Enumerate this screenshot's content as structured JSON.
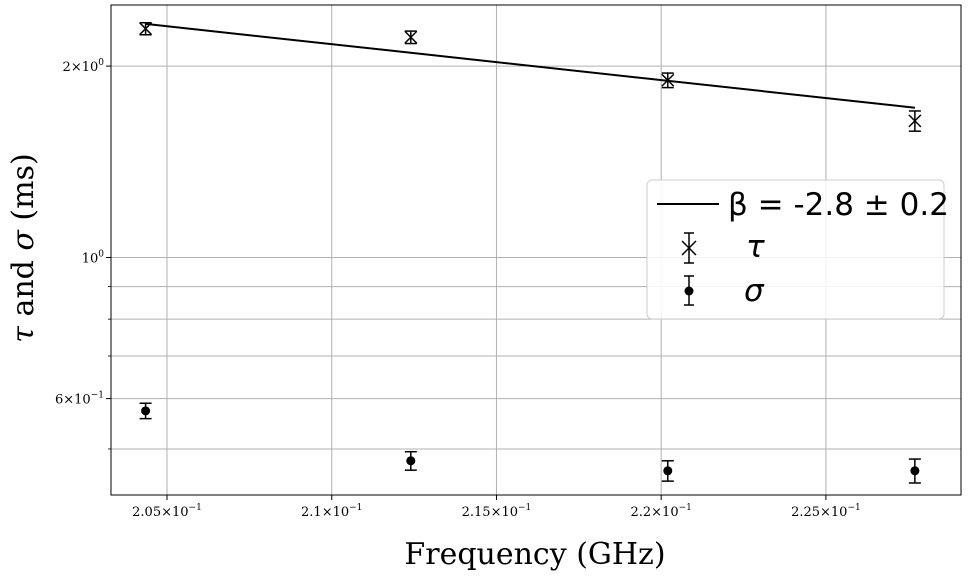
{
  "chart_data": {
    "type": "scatter",
    "xlabel": "Frequency (GHz)",
    "ylabel_parts": [
      "τ",
      " and ",
      "σ",
      " (ms)"
    ],
    "x_scale": "linear",
    "y_scale": "log",
    "xlim": [
      0.2033,
      0.2291
    ],
    "ylim": [
      0.4232,
      2.495
    ],
    "grid": true,
    "legend_position": "center-right",
    "x_ticks": [
      {
        "value": 0.205,
        "mantissa": "2.05",
        "base": "10",
        "exp": "−1"
      },
      {
        "value": 0.21,
        "mantissa": "2.1",
        "base": "10",
        "exp": "−1"
      },
      {
        "value": 0.215,
        "mantissa": "2.15",
        "base": "10",
        "exp": "−1"
      },
      {
        "value": 0.22,
        "mantissa": "2.2",
        "base": "10",
        "exp": "−1"
      },
      {
        "value": 0.225,
        "mantissa": "2.25",
        "base": "10",
        "exp": "−1"
      }
    ],
    "y_major_ticks": [
      {
        "value": 2.0,
        "mantissa": "2",
        "base": "10",
        "exp": "0"
      },
      {
        "value": 1.0,
        "mantissa": "",
        "base": "10",
        "exp": "0"
      },
      {
        "value": 0.6,
        "mantissa": "6",
        "base": "10",
        "exp": "−1"
      }
    ],
    "y_minor_grid": [
      0.5,
      0.7,
      0.8,
      0.9
    ],
    "series": [
      {
        "name": "τ",
        "marker": "x",
        "points": [
          {
            "x": 0.20435,
            "y": 2.29,
            "err": 0.05
          },
          {
            "x": 0.2124,
            "y": 2.22,
            "err": 0.05
          },
          {
            "x": 0.2202,
            "y": 1.9,
            "err": 0.05
          },
          {
            "x": 0.2277,
            "y": 1.64,
            "err": 0.06
          }
        ]
      },
      {
        "name": "σ",
        "marker": "circle",
        "points": [
          {
            "x": 0.20435,
            "y": 0.574,
            "err": 0.016
          },
          {
            "x": 0.2124,
            "y": 0.479,
            "err": 0.016
          },
          {
            "x": 0.2202,
            "y": 0.462,
            "err": 0.017
          },
          {
            "x": 0.2277,
            "y": 0.462,
            "err": 0.02
          }
        ]
      },
      {
        "name": "β = -2.8 ± 0.2",
        "type": "line",
        "x": [
          0.20435,
          0.2277
        ],
        "y": [
          2.33,
          1.72
        ]
      }
    ],
    "legend": [
      {
        "label": "β = -2.8 ± 0.2",
        "kind": "line"
      },
      {
        "label": "τ",
        "kind": "x"
      },
      {
        "label": "σ",
        "kind": "circle"
      }
    ]
  }
}
